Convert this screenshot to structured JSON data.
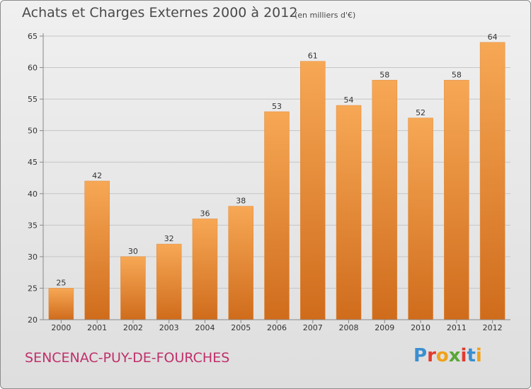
{
  "header": {
    "title": "Achats et Charges Externes 2000 à 2012",
    "subtitle": "(en milliers d'€)"
  },
  "footer": {
    "place": "SENCENAC-PUY-DE-FOURCHES",
    "brand": "Proxiti",
    "brand_colors": [
      "#3a8fd0",
      "#e23b2e",
      "#f0a21a",
      "#5aa637",
      "#e23b2e",
      "#3a8fd0",
      "#f0a21a"
    ]
  },
  "colors": {
    "bar_top": "#f7a855",
    "bar_bottom": "#cf6c1c",
    "grid": "#c6c6c6",
    "axis_text": "#333333",
    "title_text": "#4a4a4a",
    "place_text": "#c0306a"
  },
  "chart_data": {
    "type": "bar",
    "title": "Achats et Charges Externes 2000 à 2012",
    "categories": [
      "2000",
      "2001",
      "2002",
      "2003",
      "2004",
      "2005",
      "2006",
      "2007",
      "2008",
      "2009",
      "2010",
      "2011",
      "2012"
    ],
    "values": [
      25,
      42,
      30,
      32,
      36,
      38,
      53,
      61,
      54,
      58,
      52,
      58,
      64
    ],
    "xlabel": "",
    "ylabel": "",
    "ylim": [
      20,
      65
    ],
    "yticks": [
      20,
      25,
      30,
      35,
      40,
      45,
      50,
      55,
      60,
      65
    ],
    "grid": true,
    "data_labels": true
  }
}
